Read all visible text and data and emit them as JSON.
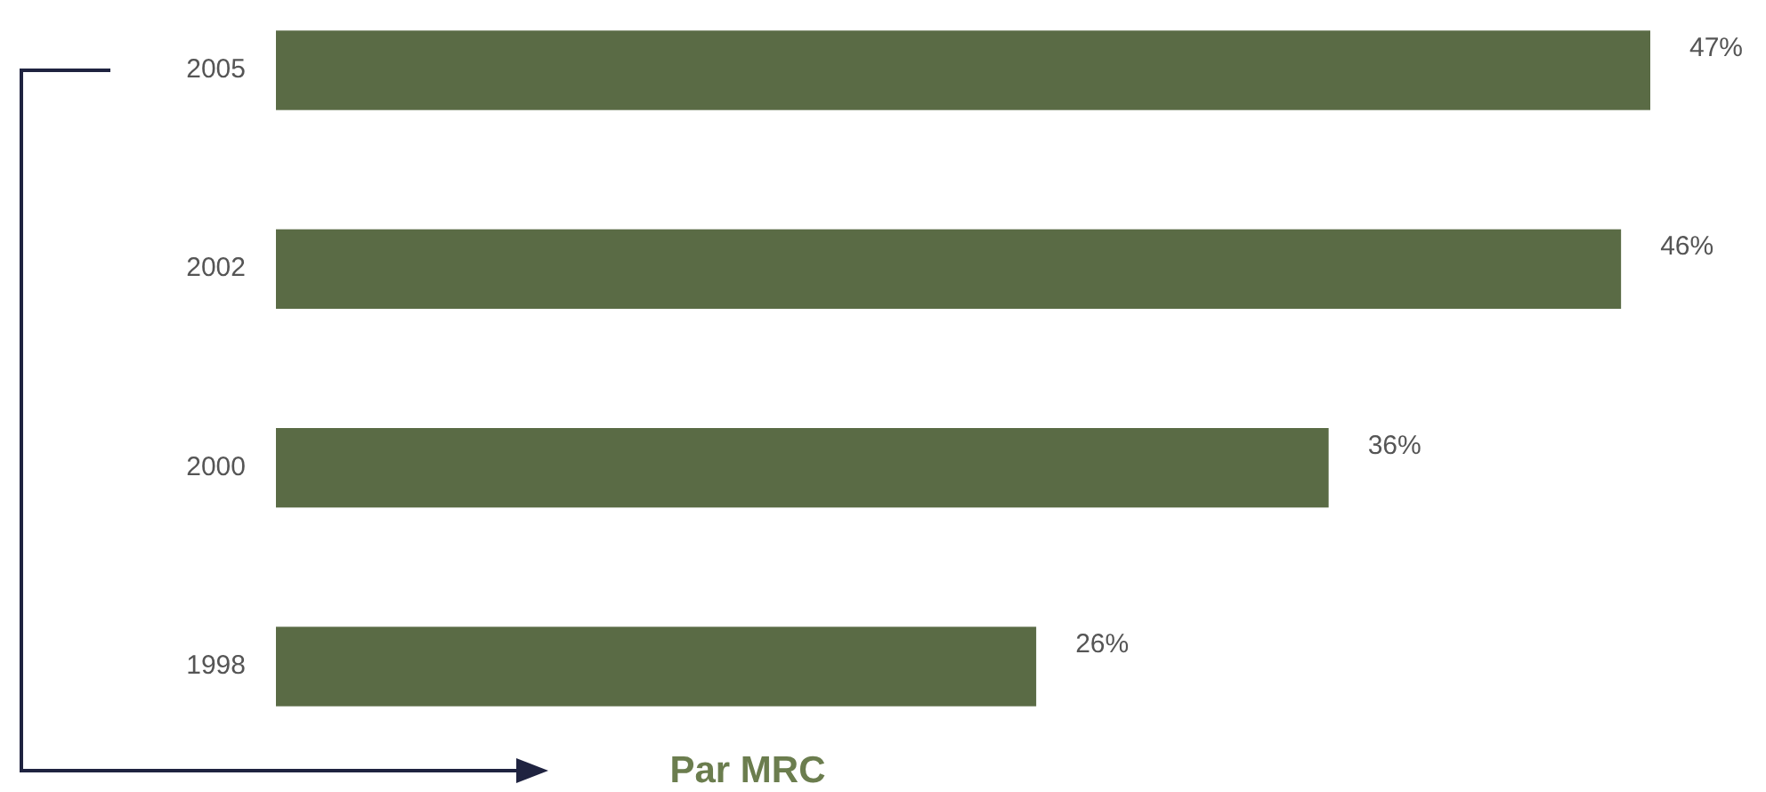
{
  "chart_data": {
    "type": "bar",
    "orientation": "horizontal",
    "xlabel": "Par MRC",
    "categories": [
      "2005",
      "2002",
      "2000",
      "1998"
    ],
    "values": [
      47,
      46,
      36,
      26
    ],
    "color": "#5a6b45",
    "value_labels": [
      "47%",
      "46%",
      "36%",
      "26%"
    ]
  }
}
